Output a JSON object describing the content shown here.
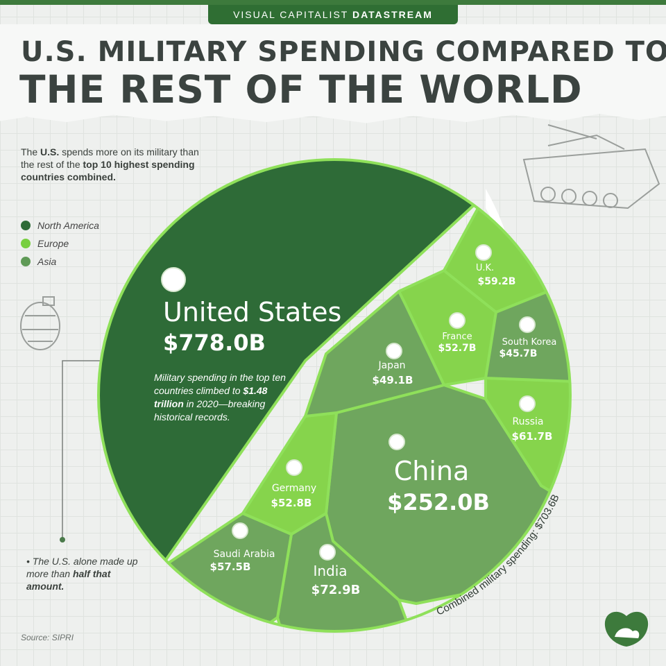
{
  "header": {
    "brand_regular": "VISUAL CAPITALIST ",
    "brand_bold": "DATASTREAM",
    "title_line1": "U.S. MILITARY SPENDING COMPARED TO",
    "title_line2": "THE REST OF THE WORLD"
  },
  "intro": {
    "part1": "The ",
    "part2": "U.S.",
    "part3": " spends more on its military than the rest of the ",
    "part4": "top 10 highest spending countries combined."
  },
  "legend": [
    {
      "label": "North America",
      "color": "#2e6b37"
    },
    {
      "label": "Europe",
      "color": "#78cf3f"
    },
    {
      "label": "Asia",
      "color": "#5f9a56"
    }
  ],
  "note": {
    "part1": "Military spending in the top ten countries climbed to ",
    "part2": "$1.48 trillion",
    "part3": " in 2020—breaking historical records."
  },
  "side_note": {
    "part1": "• The U.S. alone made up more than ",
    "part2": "half that amount."
  },
  "arc_label": "Combined military spending: $703.6B",
  "source": "Source: SIPRI",
  "chart_data": {
    "type": "voronoi-treemap",
    "unit": "USD billions",
    "total_label": "Combined military spending: $703.6B",
    "series": [
      {
        "country": "United States",
        "value": 778.0,
        "label": "$778.0B",
        "region": "North America"
      },
      {
        "country": "China",
        "value": 252.0,
        "label": "$252.0B",
        "region": "Asia"
      },
      {
        "country": "India",
        "value": 72.9,
        "label": "$72.9B",
        "region": "Asia"
      },
      {
        "country": "Russia",
        "value": 61.7,
        "label": "$61.7B",
        "region": "Europe"
      },
      {
        "country": "U.K.",
        "value": 59.2,
        "label": "$59.2B",
        "region": "Europe"
      },
      {
        "country": "Saudi Arabia",
        "value": 57.5,
        "label": "$57.5B",
        "region": "Asia"
      },
      {
        "country": "Germany",
        "value": 52.8,
        "label": "$52.8B",
        "region": "Europe"
      },
      {
        "country": "France",
        "value": 52.7,
        "label": "$52.7B",
        "region": "Europe"
      },
      {
        "country": "Japan",
        "value": 49.1,
        "label": "$49.1B",
        "region": "Asia"
      },
      {
        "country": "South Korea",
        "value": 45.7,
        "label": "$45.7B",
        "region": "Asia"
      }
    ]
  }
}
